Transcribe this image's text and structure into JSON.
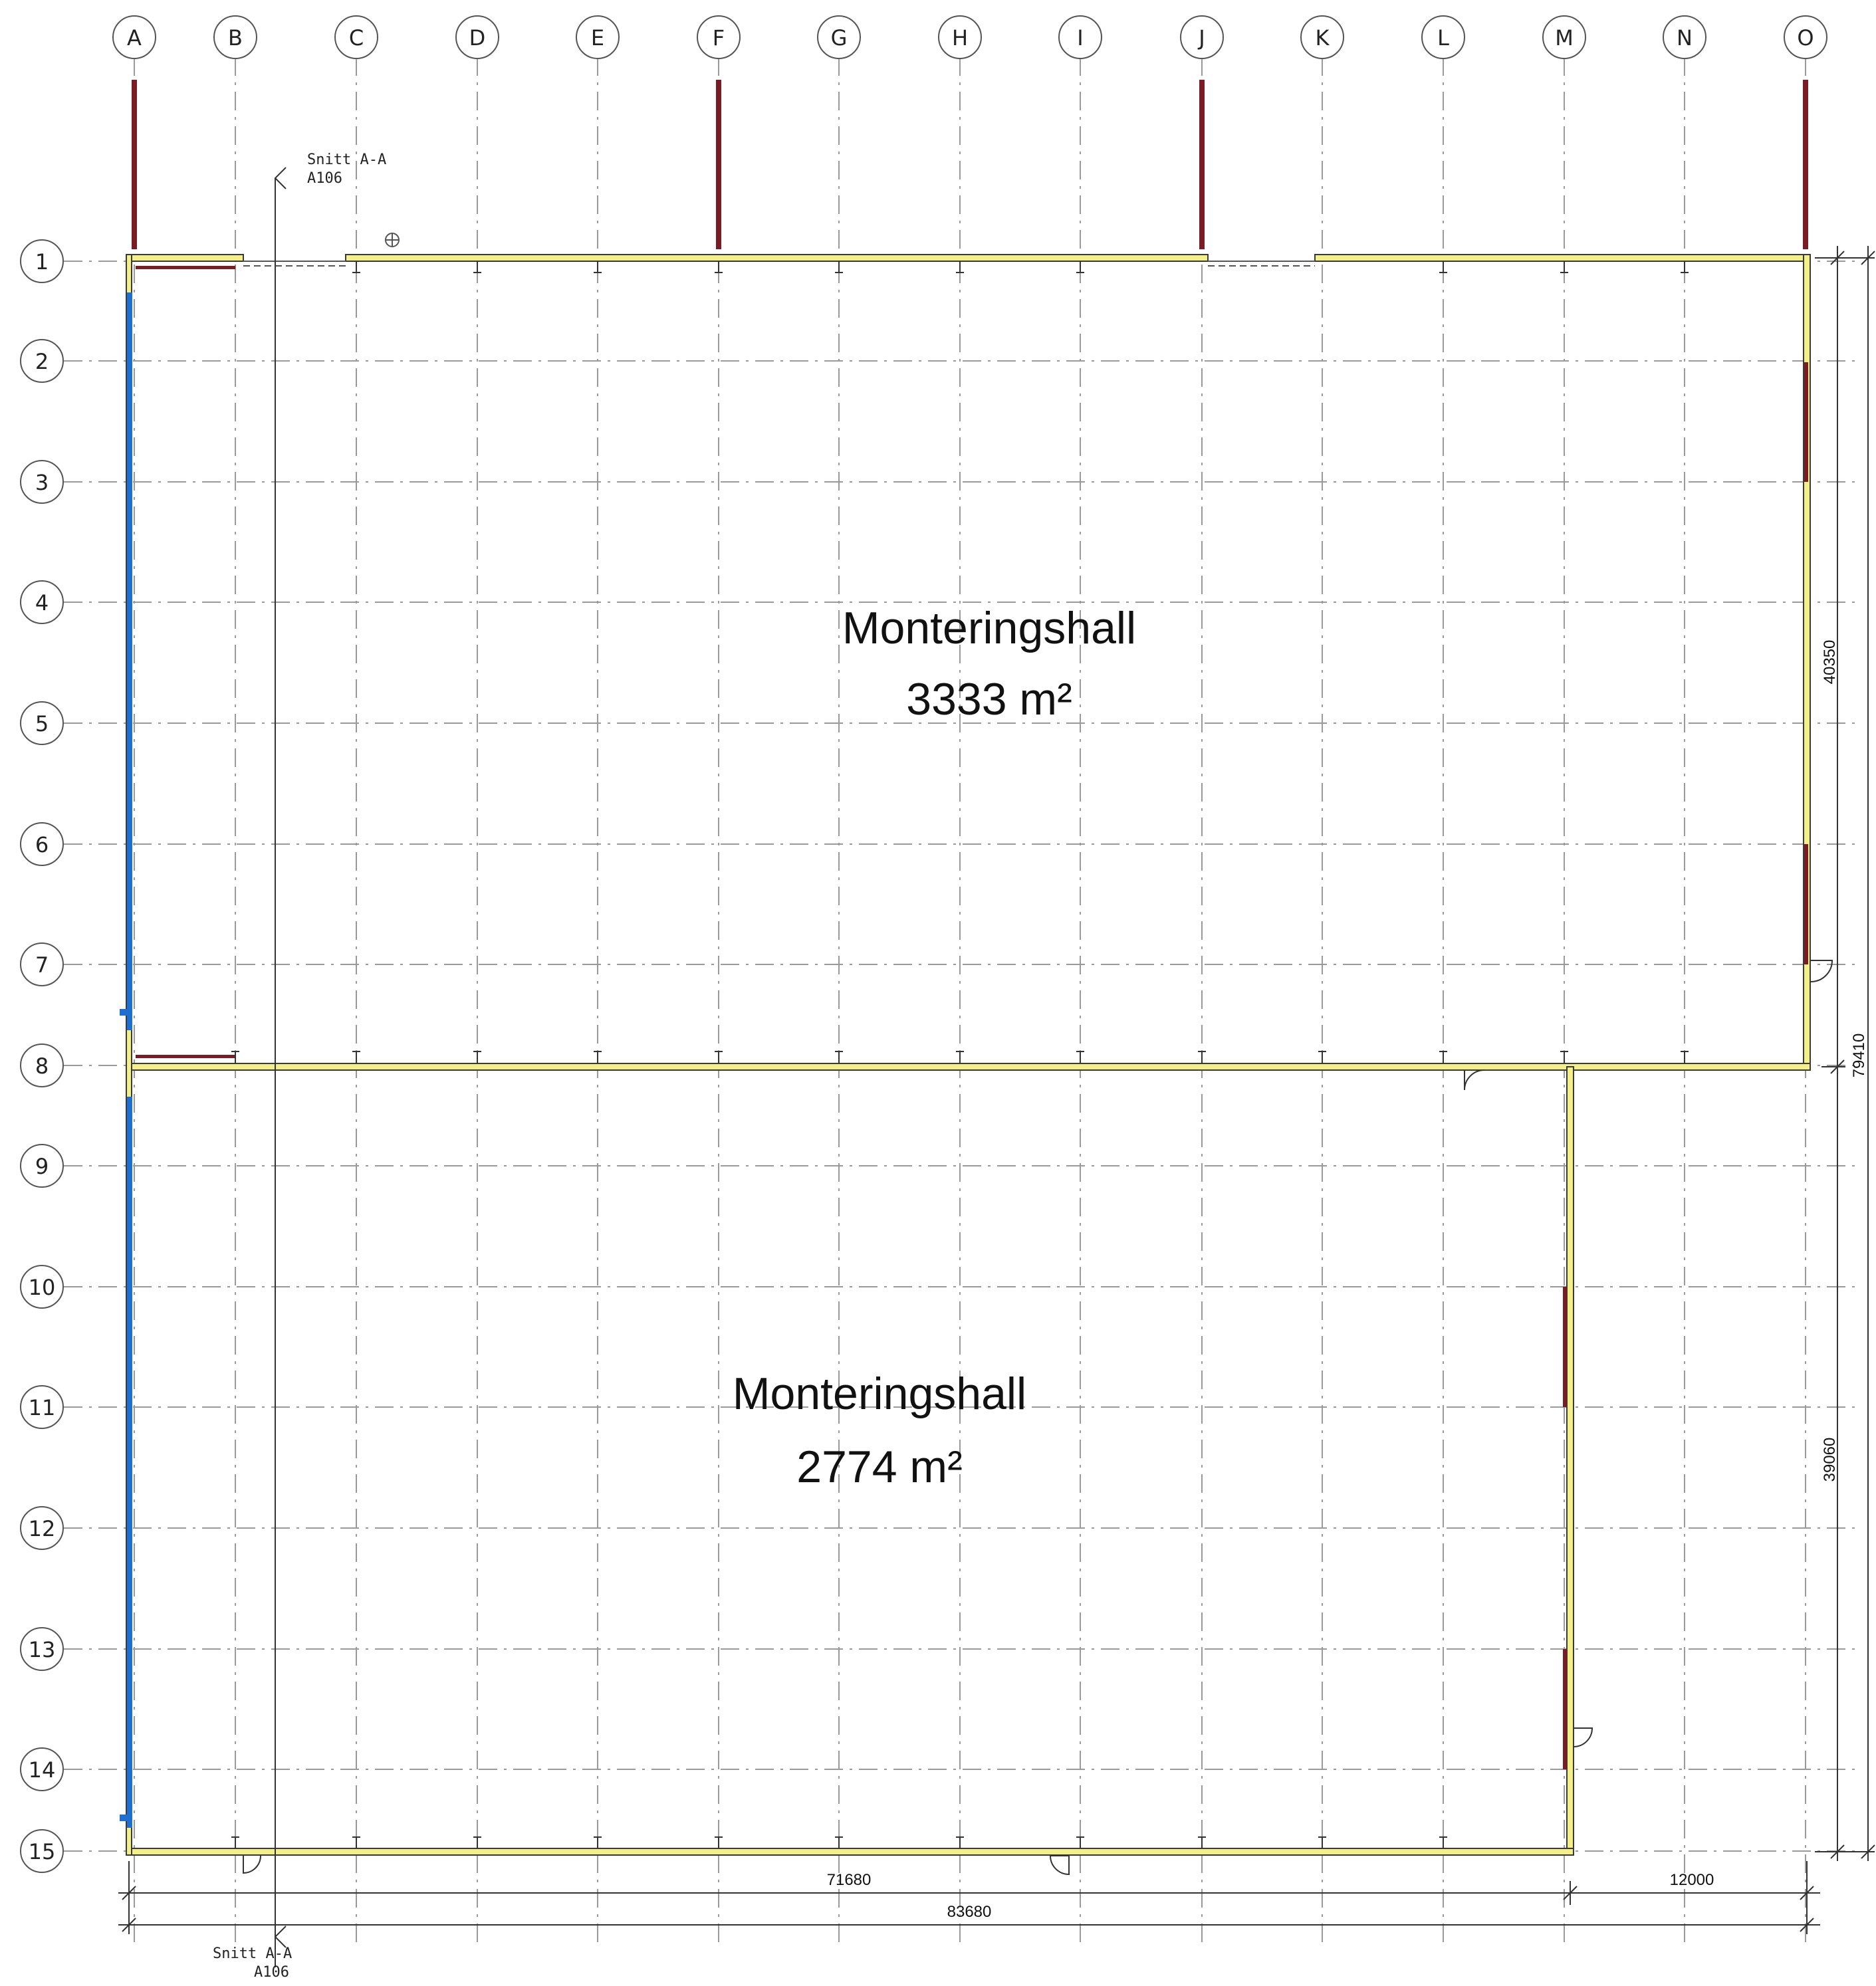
{
  "grid_columns": [
    "A",
    "B",
    "C",
    "D",
    "E",
    "F",
    "G",
    "H",
    "I",
    "J",
    "K",
    "L",
    "M",
    "N",
    "O"
  ],
  "grid_rows": [
    "1",
    "2",
    "3",
    "4",
    "5",
    "6",
    "7",
    "8",
    "9",
    "10",
    "11",
    "12",
    "13",
    "14",
    "15"
  ],
  "rooms": [
    {
      "name": "Monteringshall",
      "area": "3333 m²"
    },
    {
      "name": "Monteringshall",
      "area": "2774 m²"
    }
  ],
  "dimensions": {
    "bottom_inner": "71680",
    "bottom_right": "12000",
    "bottom_total": "83680",
    "right_upper": "40350",
    "right_lower": "39060",
    "right_total": "79410"
  },
  "section_markers": {
    "top": {
      "name": "Snitt A-A",
      "sheet": "A106"
    },
    "bottom": {
      "name": "Snitt A-A",
      "sheet": "A106"
    }
  },
  "colors": {
    "gridline": "#9a9a9a",
    "wall_fill": "#f3f08a",
    "wall_outline": "#3a3a3a",
    "red_element": "#7a1c24",
    "blue_facade": "#1f6fd1",
    "text": "#111111"
  }
}
